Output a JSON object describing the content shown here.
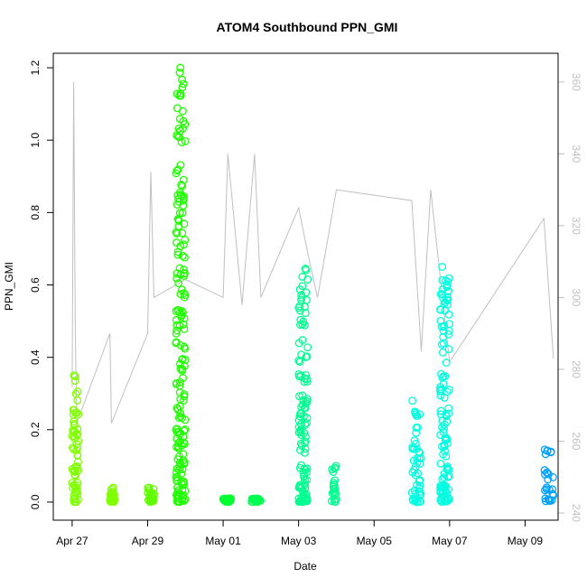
{
  "chart_data": {
    "type": "scatter",
    "title": "ATOM4 Southbound PPN_GMI",
    "xlabel": "Date",
    "ylabel": "PPN_GMI",
    "xlim": [
      "2024-04-26 12:00",
      "2024-05-09 21:00"
    ],
    "ylim": [
      -0.05,
      1.24
    ],
    "x_ticks": [
      {
        "value": "2024-04-27",
        "label": "Apr 27"
      },
      {
        "value": "2024-04-29",
        "label": "Apr 29"
      },
      {
        "value": "2024-05-01",
        "label": "May 01"
      },
      {
        "value": "2024-05-03",
        "label": "May 03"
      },
      {
        "value": "2024-05-05",
        "label": "May 05"
      },
      {
        "value": "2024-05-07",
        "label": "May 07"
      },
      {
        "value": "2024-05-09",
        "label": "May 09"
      }
    ],
    "y_ticks": [
      "0.0",
      "0.2",
      "0.4",
      "0.6",
      "0.8",
      "1.0",
      "1.2"
    ],
    "right_axis": {
      "ylim": [
        238,
        368
      ],
      "ticks": [
        "240",
        "260",
        "280",
        "300",
        "320",
        "340",
        "360"
      ],
      "color": "#c0c0c0"
    },
    "grid": false,
    "legend": "none",
    "marker": "open-circle",
    "series": [
      {
        "color": "#80ff00",
        "x_range": [
          "2024-04-27 00:00",
          "2024-04-27 04:00"
        ],
        "y_range": [
          0.0,
          0.35
        ]
      },
      {
        "color": "#7fff00",
        "x_range": [
          "2024-04-28 00:00",
          "2024-04-28 03:00"
        ],
        "y_range": [
          0.0,
          0.04
        ]
      },
      {
        "color": "#60ff00",
        "x_range": [
          "2024-04-29 00:00",
          "2024-04-29 04:00"
        ],
        "y_range": [
          0.0,
          0.04
        ]
      },
      {
        "color": "#20ff00",
        "x_range": [
          "2024-04-29 18:00",
          "2024-04-30 00:00"
        ],
        "y_range": [
          0.0,
          1.2
        ]
      },
      {
        "color": "#00ff30",
        "x_range": [
          "2024-05-01 00:00",
          "2024-05-01 05:00"
        ],
        "y_range": [
          0.0,
          0.01
        ]
      },
      {
        "color": "#00ff50",
        "x_range": [
          "2024-05-01 18:00",
          "2024-05-02 00:00"
        ],
        "y_range": [
          0.0,
          0.01
        ]
      },
      {
        "color": "#00ff90",
        "x_range": [
          "2024-05-03 00:00",
          "2024-05-03 06:00"
        ],
        "y_range": [
          0.0,
          0.645
        ]
      },
      {
        "color": "#00ff90",
        "x_range": [
          "2024-05-03 21:00",
          "2024-05-04 00:00"
        ],
        "y_range": [
          0.0,
          0.1
        ]
      },
      {
        "color": "#00ffe0",
        "x_range": [
          "2024-05-06 00:00",
          "2024-05-06 06:00"
        ],
        "y_range": [
          0.0,
          0.28
        ]
      },
      {
        "color": "#00ffe0",
        "x_range": [
          "2024-05-06 18:00",
          "2024-05-07 00:00"
        ],
        "y_range": [
          0.0,
          0.65
        ]
      },
      {
        "color": "#00a0ff",
        "x_range": [
          "2024-05-09 12:00",
          "2024-05-09 18:00"
        ],
        "y_range": [
          0.0,
          0.145
        ]
      }
    ],
    "secondary_line": {
      "color": "#c0c0c0",
      "axis": "right",
      "x": [
        "2024-04-27 00:00",
        "2024-04-27 01:00",
        "2024-04-27 02:00",
        "2024-04-27 03:00",
        "2024-04-28 00:00",
        "2024-04-28 01:00",
        "2024-04-29 00:00",
        "2024-04-29 02:00",
        "2024-04-29 04:00",
        "2024-04-30 00:00",
        "2024-05-01 00:00",
        "2024-05-01 03:00",
        "2024-05-01 12:00",
        "2024-05-01 20:00",
        "2024-05-02 00:00",
        "2024-05-03 00:00",
        "2024-05-03 06:00",
        "2024-05-03 12:00",
        "2024-05-04 00:00",
        "2024-05-06 00:00",
        "2024-05-06 06:00",
        "2024-05-06 12:00",
        "2024-05-07 00:00",
        "2024-05-09 12:00",
        "2024-05-09 18:00"
      ],
      "y": [
        275,
        360,
        290,
        265,
        290,
        265,
        290,
        335,
        300,
        305,
        300,
        340,
        298,
        340,
        300,
        325,
        312,
        300,
        330,
        327,
        285,
        330,
        282,
        322,
        283
      ]
    }
  }
}
